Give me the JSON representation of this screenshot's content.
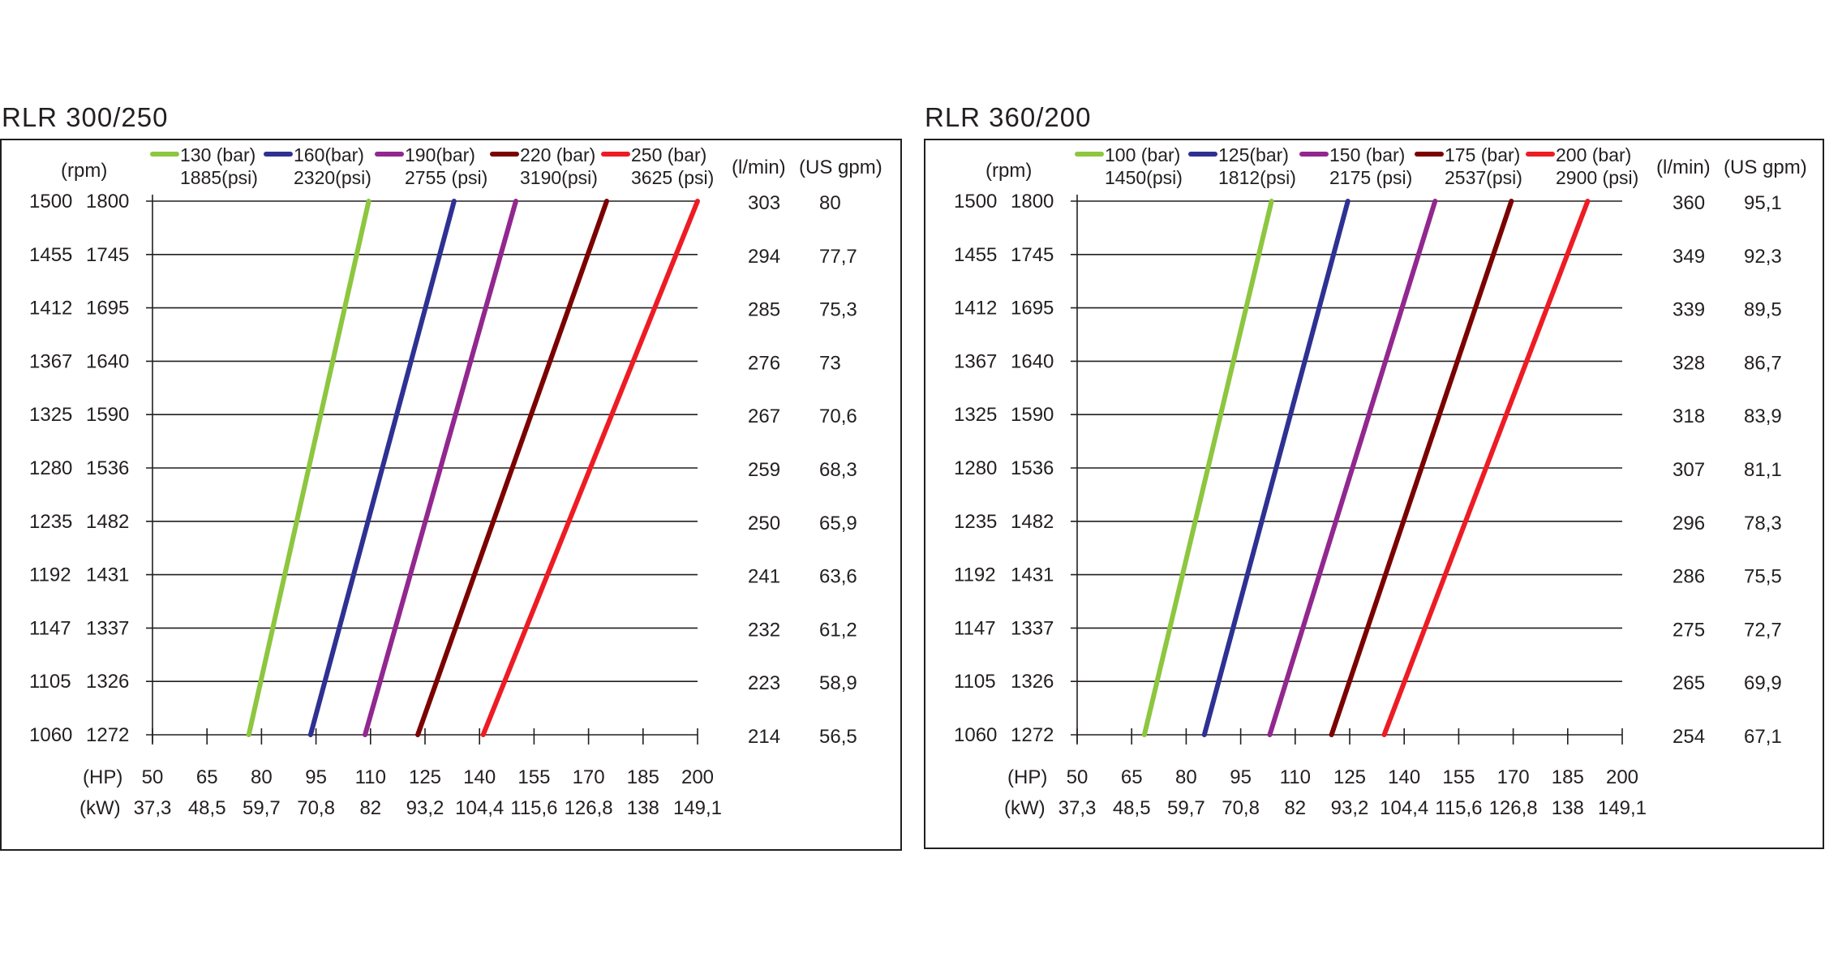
{
  "chart_data": [
    {
      "type": "line",
      "title": "RLR 300/250",
      "rpm_label": "(rpm)",
      "flow_label": "(l/min)",
      "gpm_label": "(US gpm)",
      "hp_label": "(HP)",
      "kw_label": "(kW)",
      "rpm_engine": [
        "1500",
        "1455",
        "1412",
        "1367",
        "1325",
        "1280",
        "1235",
        "1192",
        "1147",
        "1105",
        "1060"
      ],
      "rpm_pump": [
        "1800",
        "1745",
        "1695",
        "1640",
        "1590",
        "1536",
        "1482",
        "1431",
        "1337",
        "1326",
        "1272"
      ],
      "flow_lmin": [
        "303",
        "294",
        "285",
        "276",
        "267",
        "259",
        "250",
        "241",
        "232",
        "223",
        "214"
      ],
      "flow_gpm": [
        "80",
        "77,7",
        "75,3",
        "73",
        "70,6",
        "68,3",
        "65,9",
        "63,6",
        "61,2",
        "58,9",
        "56,5"
      ],
      "hp_ticks": [
        "50",
        "65",
        "80",
        "95",
        "110",
        "125",
        "140",
        "155",
        "170",
        "185",
        "200"
      ],
      "kw_ticks": [
        "37,3",
        "48,5",
        "59,7",
        "70,8",
        "82",
        "93,2",
        "104,4",
        "115,6",
        "126,8",
        "138",
        "149,1"
      ],
      "xlim": [
        50,
        200
      ],
      "ylim_rpm": [
        1272,
        1800
      ],
      "grid": true,
      "legend_position": "top",
      "series": [
        {
          "bar": "130 (bar)",
          "psi": "1885(psi)",
          "color": "#8dc63f",
          "points": [
            [
              76.5,
              1272
            ],
            [
              109.5,
              1800
            ]
          ]
        },
        {
          "bar": "160(bar)",
          "psi": "2320(psi)",
          "color": "#2e3192",
          "points": [
            [
              93.5,
              1272
            ],
            [
              133.0,
              1800
            ]
          ]
        },
        {
          "bar": "190(bar)",
          "psi": "2755 (psi)",
          "color": "#92278f",
          "points": [
            [
              108.5,
              1272
            ],
            [
              150.0,
              1800
            ]
          ]
        },
        {
          "bar": "220 (bar)",
          "psi": "3190(psi)",
          "color": "#7b0000",
          "points": [
            [
              123.0,
              1272
            ],
            [
              175.0,
              1800
            ]
          ]
        },
        {
          "bar": "250 (bar)",
          "psi": "3625 (psi)",
          "color": "#ed1c24",
          "points": [
            [
              141.0,
              1272
            ],
            [
              200.0,
              1800
            ]
          ]
        }
      ]
    },
    {
      "type": "line",
      "title": "RLR 360/200",
      "rpm_label": "(rpm)",
      "flow_label": "(l/min)",
      "gpm_label": "(US gpm)",
      "hp_label": "(HP)",
      "kw_label": "(kW)",
      "rpm_engine": [
        "1500",
        "1455",
        "1412",
        "1367",
        "1325",
        "1280",
        "1235",
        "1192",
        "1147",
        "1105",
        "1060"
      ],
      "rpm_pump": [
        "1800",
        "1745",
        "1695",
        "1640",
        "1590",
        "1536",
        "1482",
        "1431",
        "1337",
        "1326",
        "1272"
      ],
      "flow_lmin": [
        "360",
        "349",
        "339",
        "328",
        "318",
        "307",
        "296",
        "286",
        "275",
        "265",
        "254"
      ],
      "flow_gpm": [
        "95,1",
        "92,3",
        "89,5",
        "86,7",
        "83,9",
        "81,1",
        "78,3",
        "75,5",
        "72,7",
        "69,9",
        "67,1"
      ],
      "hp_ticks": [
        "50",
        "65",
        "80",
        "95",
        "110",
        "125",
        "140",
        "155",
        "170",
        "185",
        "200"
      ],
      "kw_ticks": [
        "37,3",
        "48,5",
        "59,7",
        "70,8",
        "82",
        "93,2",
        "104,4",
        "115,6",
        "126,8",
        "138",
        "149,1"
      ],
      "xlim": [
        50,
        200
      ],
      "ylim_rpm": [
        1272,
        1800
      ],
      "grid": true,
      "legend_position": "top",
      "series": [
        {
          "bar": "100 (bar)",
          "psi": "1450(psi)",
          "color": "#8dc63f",
          "points": [
            [
              68.5,
              1272
            ],
            [
              103.5,
              1800
            ]
          ]
        },
        {
          "bar": "125(bar)",
          "psi": "1812(psi)",
          "color": "#2e3192",
          "points": [
            [
              85.0,
              1272
            ],
            [
              124.5,
              1800
            ]
          ]
        },
        {
          "bar": "150 (bar)",
          "psi": "2175 (psi)",
          "color": "#92278f",
          "points": [
            [
              103.0,
              1272
            ],
            [
              148.5,
              1800
            ]
          ]
        },
        {
          "bar": "175 (bar)",
          "psi": "2537(psi)",
          "color": "#7b0000",
          "points": [
            [
              120.0,
              1272
            ],
            [
              169.5,
              1800
            ]
          ]
        },
        {
          "bar": "200 (bar)",
          "psi": "2900 (psi)",
          "color": "#ed1c24",
          "points": [
            [
              134.5,
              1272
            ],
            [
              190.5,
              1800
            ]
          ]
        }
      ]
    }
  ]
}
